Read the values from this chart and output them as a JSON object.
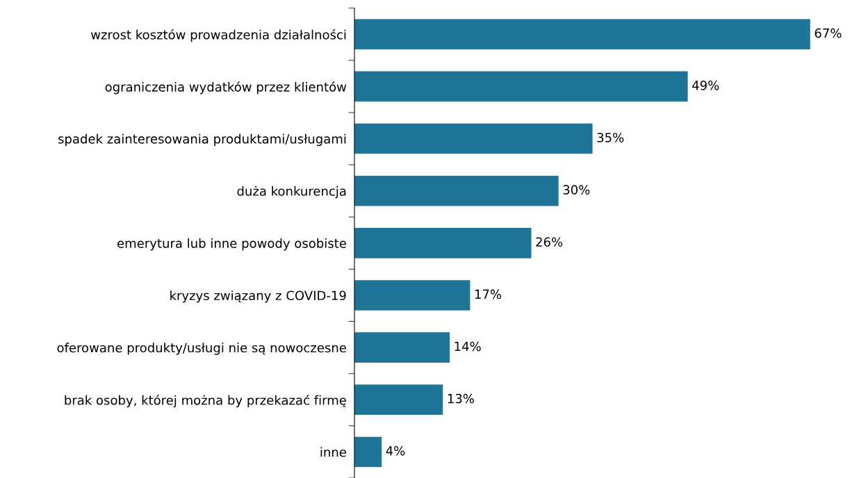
{
  "chart_data": {
    "type": "bar",
    "orientation": "horizontal",
    "tick_labels": "y",
    "categories": [
      "wzrost kosztów prowadzenia działalności",
      "ograniczenia wydatków przez klientów",
      "spadek zainteresowania produktami/usługami",
      "duża konkurencja",
      "emerytura lub inne powody osobiste",
      "kryzys związany z COVID-19",
      "oferowane produkty/usługi nie są nowoczesne",
      "brak osoby, której można by przekazać firmę",
      "inne"
    ],
    "values": [
      67,
      49,
      35,
      30,
      26,
      17,
      14,
      13,
      4
    ],
    "value_labels": [
      "67%",
      "49%",
      "35%",
      "30%",
      "26%",
      "17%",
      "14%",
      "13%",
      "4%"
    ],
    "color": "#1f7596"
  }
}
